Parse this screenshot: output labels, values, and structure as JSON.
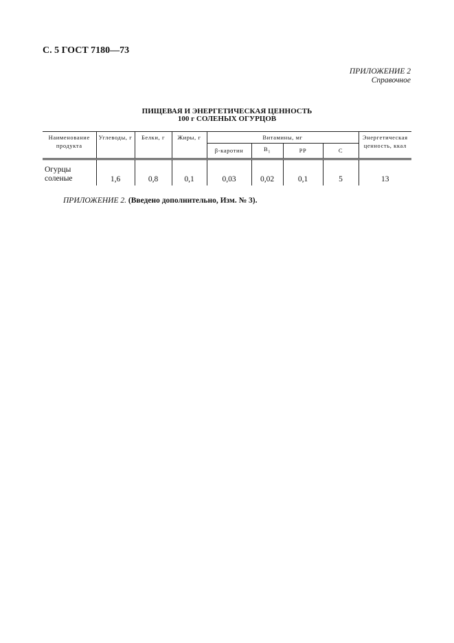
{
  "header": "С. 5 ГОСТ 7180—73",
  "appendix": {
    "label": "ПРИЛОЖЕНИЕ 2",
    "type": "Справочное"
  },
  "title": {
    "line1": "ПИЩЕВАЯ И ЭНЕРГЕТИЧЕСКАЯ ЦЕННОСТЬ",
    "line2": "100 г СОЛЕНЫХ ОГУРЦОВ"
  },
  "table": {
    "headers": {
      "name": "Наименование продукта",
      "carbs": "Углеводы, г",
      "protein": "Белки, г",
      "fat": "Жиры, г",
      "vitamins": "Витамины, мг",
      "energy": "Энергетическая ценность, ккал",
      "vit_beta": "β-каротин",
      "vit_b1": "B",
      "vit_b1_sub": "1",
      "vit_pp": "PP",
      "vit_c": "С"
    },
    "rows": [
      {
        "name": "Огурцы соленые",
        "carbs": "1,6",
        "protein": "0,8",
        "fat": "0,1",
        "beta": "0,03",
        "b1": "0,02",
        "pp": "0,1",
        "c": "5",
        "energy": "13"
      }
    ]
  },
  "note": {
    "label": "ПРИЛОЖЕНИЕ 2.",
    "text": "(Введено дополнительно, Изм. № 3)."
  }
}
